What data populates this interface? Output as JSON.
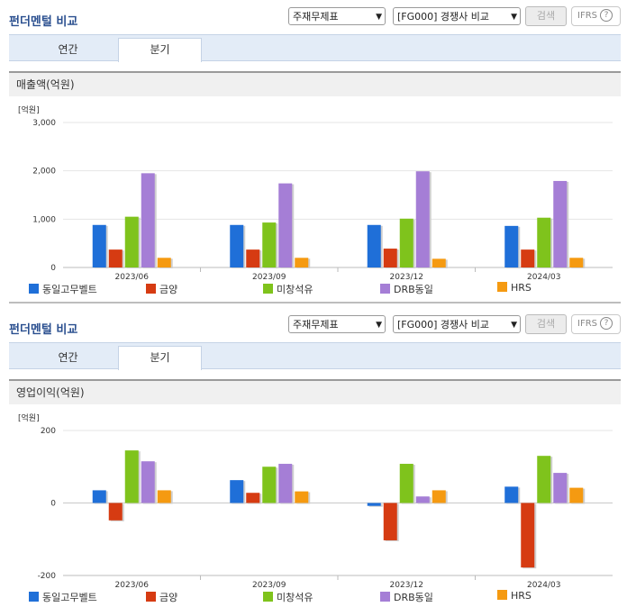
{
  "panels": [
    {
      "title": "펀더멘털 비교",
      "select1": "주재무제표",
      "select2": "[FG000] 경쟁사 비교",
      "search_label": "검색",
      "ifrs_label": "IFRS",
      "help_glyph": "?",
      "tabs": [
        {
          "label": "연간",
          "active": false
        },
        {
          "label": "분기",
          "active": true
        }
      ],
      "section_title": "매출액(억원)"
    },
    {
      "title": "펀더멘털 비교",
      "select1": "주재무제표",
      "select2": "[FG000] 경쟁사 비교",
      "search_label": "검색",
      "ifrs_label": "IFRS",
      "help_glyph": "?",
      "tabs": [
        {
          "label": "연간",
          "active": false
        },
        {
          "label": "분기",
          "active": true
        }
      ],
      "section_title": "영업이익(억원)"
    }
  ],
  "chart_data": [
    {
      "type": "bar",
      "unit_label": "[억원]",
      "categories": [
        "2023/06",
        "2023/09",
        "2023/12",
        "2024/03"
      ],
      "ylim": [
        0,
        3000
      ],
      "yticks": [
        0,
        1000,
        2000,
        3000
      ],
      "ytick_labels": [
        "0",
        "1,000",
        "2,000",
        "3,000"
      ],
      "grid": true,
      "legend_position": "bottom",
      "series": [
        {
          "name": "동일고무벨트",
          "color": "#1f6fd8",
          "values": [
            880,
            880,
            880,
            860
          ]
        },
        {
          "name": "금양",
          "color": "#d63b12",
          "values": [
            370,
            370,
            390,
            370
          ]
        },
        {
          "name": "미창석유",
          "color": "#7fc31c",
          "values": [
            1050,
            930,
            1010,
            1030
          ]
        },
        {
          "name": "DRB동일",
          "color": "#a57ed6",
          "values": [
            1950,
            1740,
            1990,
            1790
          ]
        },
        {
          "name": "HRS",
          "color": "#f59a11",
          "values": [
            200,
            200,
            180,
            200
          ]
        }
      ]
    },
    {
      "type": "bar",
      "unit_label": "[억원]",
      "categories": [
        "2023/06",
        "2023/09",
        "2023/12",
        "2024/03"
      ],
      "ylim": [
        -200,
        200
      ],
      "yticks": [
        -200,
        0,
        200
      ],
      "ytick_labels": [
        "-200",
        "0",
        "200"
      ],
      "grid": true,
      "legend_position": "bottom",
      "series": [
        {
          "name": "동일고무벨트",
          "color": "#1f6fd8",
          "values": [
            35,
            63,
            -8,
            45
          ]
        },
        {
          "name": "금양",
          "color": "#d63b12",
          "values": [
            -48,
            28,
            -103,
            -178
          ]
        },
        {
          "name": "미창석유",
          "color": "#7fc31c",
          "values": [
            145,
            100,
            108,
            130
          ]
        },
        {
          "name": "DRB동일",
          "color": "#a57ed6",
          "values": [
            115,
            108,
            18,
            83
          ]
        },
        {
          "name": "HRS",
          "color": "#f59a11",
          "values": [
            35,
            32,
            35,
            42
          ]
        }
      ]
    }
  ]
}
